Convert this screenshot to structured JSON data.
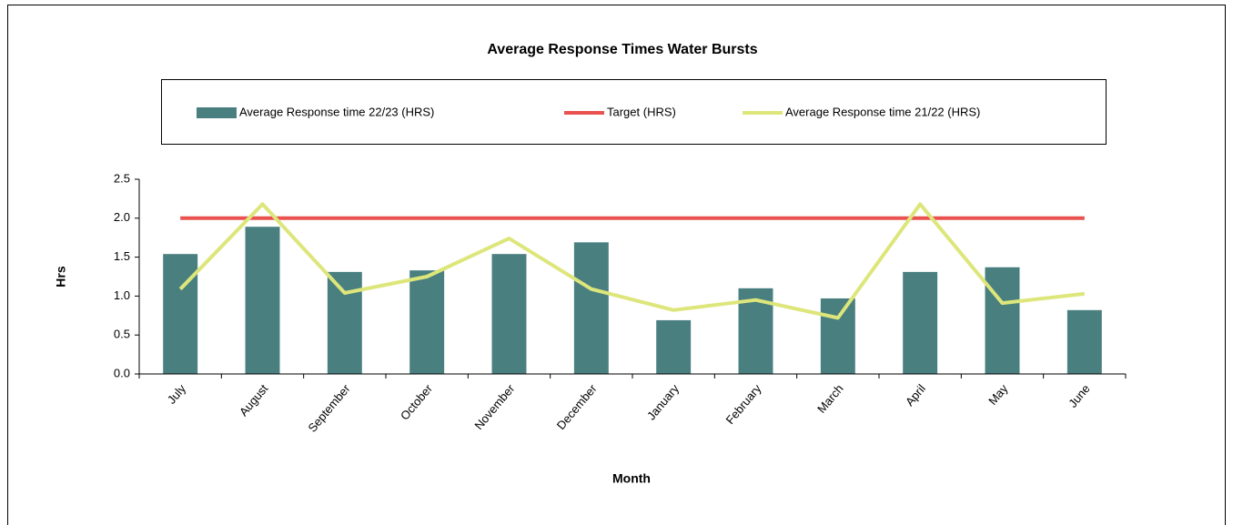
{
  "chart_data": {
    "type": "bar-line",
    "title": "Average Response Times Water Bursts",
    "x_label": "Month",
    "y_label": "Hrs",
    "categories": [
      "July",
      "August",
      "September",
      "October",
      "November",
      "December",
      "January",
      "February",
      "March",
      "April",
      "May",
      "June"
    ],
    "series": [
      {
        "name": "Average Response time 22/23 (HRS)",
        "kind": "bar",
        "color": "#4a7f80",
        "values": [
          1.54,
          1.89,
          1.31,
          1.33,
          1.54,
          1.69,
          0.69,
          1.1,
          0.97,
          1.31,
          1.37,
          0.82
        ]
      },
      {
        "name": "Target (HRS)",
        "kind": "line",
        "color": "#e9524f",
        "values": [
          2,
          2,
          2,
          2,
          2,
          2,
          2,
          2,
          2,
          2,
          2,
          2
        ]
      },
      {
        "name": "Average Response time 21/22 (HRS)",
        "kind": "line",
        "color": "#dde67a",
        "values": [
          1.09,
          2.18,
          1.04,
          1.25,
          1.74,
          1.09,
          0.82,
          0.95,
          0.72,
          2.18,
          0.91,
          1.03
        ]
      }
    ],
    "ylim": [
      0,
      2.5
    ],
    "yticks": [
      {
        "value": 0,
        "label": "0.0"
      },
      0.5,
      {
        "value": 1,
        "label": "1.0"
      },
      1.5,
      {
        "value": 2,
        "label": "2.0"
      },
      2.5
    ],
    "legend": "top"
  }
}
